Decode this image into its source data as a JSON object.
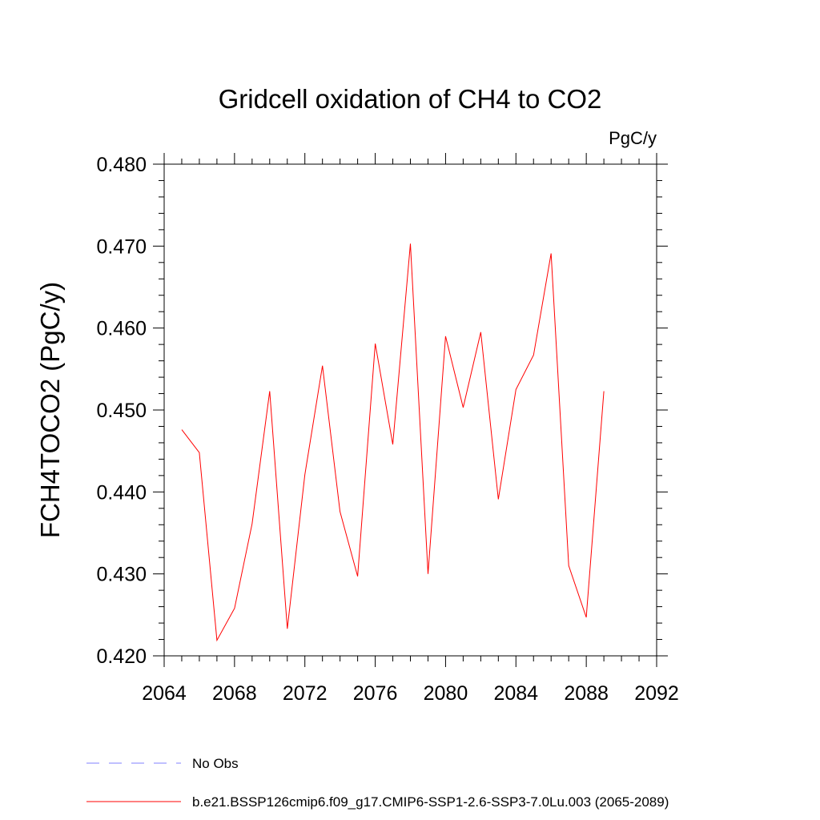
{
  "chart_data": {
    "type": "line",
    "title": "Gridcell oxidation of CH4 to CO2",
    "units": "PgC/y",
    "xlabel": "",
    "ylabel": "FCH4TOCO2  (PgC/y)",
    "xlim": [
      2064,
      2092
    ],
    "ylim": [
      0.42,
      0.48
    ],
    "x_ticks": [
      2064,
      2068,
      2072,
      2076,
      2080,
      2084,
      2088,
      2092
    ],
    "x_tick_labels": [
      "2064",
      "2068",
      "2072",
      "2076",
      "2080",
      "2084",
      "2088",
      "2092"
    ],
    "y_ticks": [
      0.42,
      0.43,
      0.44,
      0.45,
      0.46,
      0.47,
      0.48
    ],
    "y_tick_labels": [
      "0.420",
      "0.430",
      "0.440",
      "0.450",
      "0.460",
      "0.470",
      "0.480"
    ],
    "grid": false,
    "legend_position": "bottom-left",
    "series": [
      {
        "name": "b.e21.BSSP126cmip6.f09_g17.CMIP6-SSP1-2.6-SSP3-7.0Lu.003 (2065-2089)",
        "color": "#ff0000",
        "style": "solid",
        "x": [
          2065,
          2066,
          2067,
          2068,
          2069,
          2070,
          2071,
          2072,
          2073,
          2074,
          2075,
          2076,
          2077,
          2078,
          2079,
          2080,
          2081,
          2082,
          2083,
          2084,
          2085,
          2086,
          2087,
          2088,
          2089
        ],
        "y": [
          0.4476,
          0.4448,
          0.4219,
          0.4258,
          0.4361,
          0.4523,
          0.4233,
          0.4421,
          0.4554,
          0.4376,
          0.4297,
          0.4581,
          0.4458,
          0.4703,
          0.43,
          0.459,
          0.4503,
          0.4595,
          0.4391,
          0.4525,
          0.4567,
          0.4691,
          0.431,
          0.4247,
          0.4523
        ]
      }
    ],
    "legend": [
      {
        "label": "No Obs",
        "color": "#8080ff",
        "style": "dashed"
      },
      {
        "label": "b.e21.BSSP126cmip6.f09_g17.CMIP6-SSP1-2.6-SSP3-7.0Lu.003 (2065-2089)",
        "color": "#ff0000",
        "style": "solid"
      }
    ]
  }
}
